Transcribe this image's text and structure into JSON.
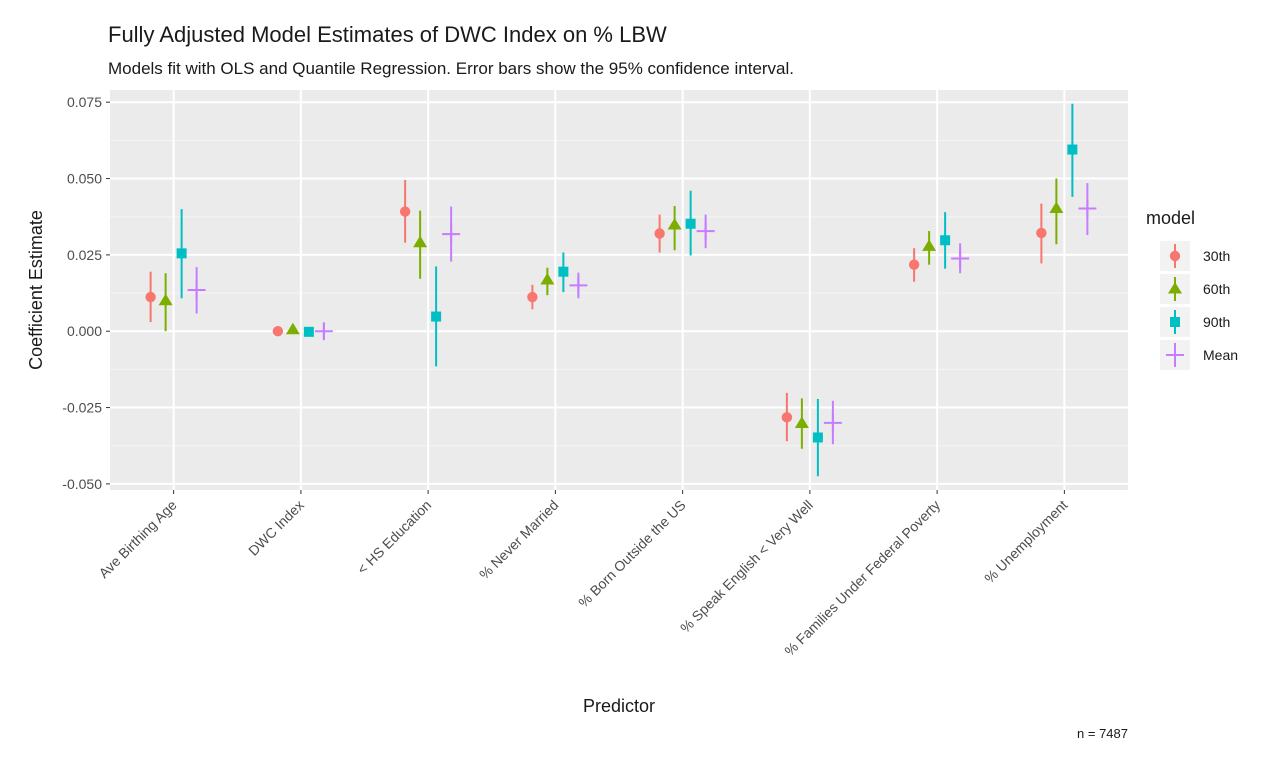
{
  "chart_data": {
    "type": "scatter",
    "title": "Fully Adjusted Model Estimates of DWC Index on % LBW",
    "subtitle": "Models fit with OLS and Quantile Regression. Error bars show the 95% confidence interval.",
    "xlabel": "Predictor",
    "ylabel": "Coefficient Estimate",
    "caption": "n = 7487",
    "ylim": [
      -0.052,
      0.079
    ],
    "yticks": [
      0.075,
      0.05,
      0.025,
      0.0,
      -0.025,
      -0.05
    ],
    "ytick_labels": [
      "0.075",
      "0.050",
      "0.025",
      "0.000",
      "-0.025",
      "-0.050"
    ],
    "grid": true,
    "legend_position": "right",
    "legend_title": "model",
    "categories": [
      "Ave Birthing Age",
      "DWC Index",
      "< HS Education",
      "% Never Married",
      "% Born Outside the US",
      "% Speak English < Very Well",
      "% Families Under Federal Poverty",
      "% Unemployment"
    ],
    "series": [
      {
        "name": "30th",
        "color": "#F8766D",
        "marker": "circle",
        "values": [
          0.0112,
          0.0,
          0.0392,
          0.0112,
          0.032,
          -0.0282,
          0.0218,
          0.0322
        ],
        "lower": [
          0.003,
          0.0,
          0.029,
          0.0072,
          0.0258,
          -0.036,
          0.0162,
          0.0222
        ],
        "upper": [
          0.0195,
          0.0,
          0.0495,
          0.0152,
          0.0382,
          -0.0202,
          0.0272,
          0.0418
        ]
      },
      {
        "name": "60th",
        "color": "#7CAE00",
        "marker": "triangle",
        "values": [
          0.01,
          0.0005,
          0.029,
          0.0168,
          0.0348,
          -0.0302,
          0.0278,
          0.0402
        ],
        "lower": [
          0.0,
          0.0,
          0.0172,
          0.0118,
          0.0265,
          -0.0385,
          0.0218,
          0.0285
        ],
        "upper": [
          0.019,
          0.0008,
          0.0395,
          0.0208,
          0.041,
          -0.022,
          0.0328,
          0.05
        ]
      },
      {
        "name": "90th",
        "color": "#00BFC4",
        "marker": "square",
        "values": [
          0.0255,
          -0.0002,
          0.0048,
          0.0195,
          0.0352,
          -0.0348,
          0.0298,
          0.0595
        ],
        "lower": [
          0.0108,
          -0.0002,
          -0.0115,
          0.0128,
          0.0248,
          -0.0475,
          0.0205,
          0.044
        ],
        "upper": [
          0.04,
          -0.0002,
          0.0212,
          0.0258,
          0.046,
          -0.0222,
          0.039,
          0.0745
        ]
      },
      {
        "name": "Mean",
        "color": "#C77CFF",
        "marker": "plus",
        "values": [
          0.0135,
          0.0,
          0.0318,
          0.015,
          0.0328,
          -0.03,
          0.0238,
          0.0402
        ],
        "lower": [
          0.0058,
          -0.0025,
          0.0228,
          0.0108,
          0.0272,
          -0.037,
          0.019,
          0.0315
        ],
        "upper": [
          0.021,
          0.0025,
          0.0408,
          0.0192,
          0.0382,
          -0.0228,
          0.0288,
          0.0485
        ]
      }
    ]
  }
}
